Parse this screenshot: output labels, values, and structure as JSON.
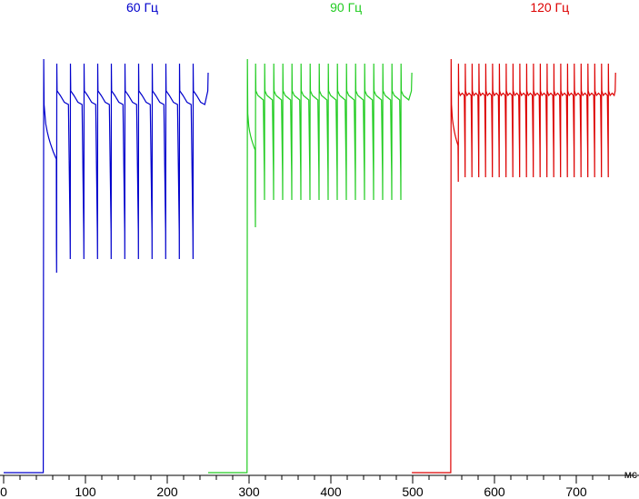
{
  "chart_data": {
    "type": "line",
    "title": "",
    "xlabel": "мс",
    "ylabel": "",
    "xlim": [
      0,
      750
    ],
    "ylim": [
      0,
      1
    ],
    "grid": false,
    "legend": "labels above each series",
    "x_ticks": [
      0,
      100,
      200,
      300,
      400,
      500,
      600,
      700
    ],
    "x_tick_labels": [
      "0",
      "100",
      "200",
      "300",
      "400",
      "500",
      "600",
      "700"
    ],
    "series": [
      {
        "name": "60 Гц",
        "color": "#0000cc",
        "baseline": 0.0,
        "rise_at": 49,
        "pulse_start": 65,
        "pulse_period": 16.67,
        "pulse_count": 11,
        "end": 250,
        "peak_level": 0.9,
        "plateau_level": 0.84,
        "trough_level": 0.81,
        "dip_level": 0.47,
        "first_dip_level": 0.44,
        "initial_level": 0.81,
        "initial_decay_level": 0.69
      },
      {
        "name": "90 Гц",
        "color": "#22cc22",
        "baseline": 0.0,
        "rise_at": 298,
        "pulse_start": 308,
        "pulse_period": 11.11,
        "pulse_count": 17,
        "end": 499,
        "peak_level": 0.9,
        "plateau_level": 0.84,
        "trough_level": 0.82,
        "dip_level": 0.6,
        "first_dip_level": 0.54,
        "initial_level": 0.79,
        "initial_decay_level": 0.71
      },
      {
        "name": "120 Гц",
        "color": "#dd0000",
        "baseline": 0.0,
        "rise_at": 547,
        "pulse_start": 556,
        "pulse_period": 8.33,
        "pulse_count": 23,
        "end": 748,
        "peak_level": 0.9,
        "plateau_level": 0.84,
        "trough_level": 0.83,
        "dip_level": 0.65,
        "first_dip_level": 0.64,
        "initial_level": 0.81,
        "initial_decay_level": 0.72
      }
    ]
  }
}
